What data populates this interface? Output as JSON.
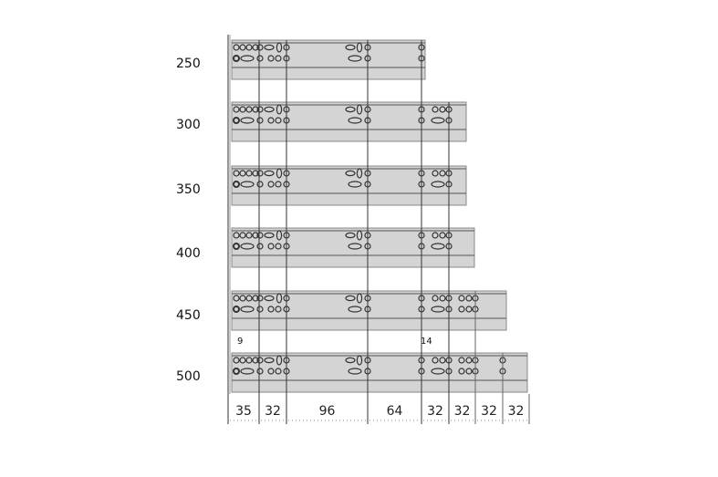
{
  "rails": [
    {
      "length_label": "250",
      "extra_groups": 0
    },
    {
      "length_label": "300",
      "extra_groups": 1
    },
    {
      "length_label": "350",
      "extra_groups": 1
    },
    {
      "length_label": "400",
      "extra_groups": 1
    },
    {
      "length_label": "450",
      "extra_groups": 2
    },
    {
      "length_label": "500",
      "extra_groups": 3
    }
  ],
  "annotations": {
    "left": "9",
    "right": "14"
  },
  "dimensions": [
    "35",
    "32",
    "96",
    "64",
    "32",
    "32",
    "32",
    "32"
  ],
  "colors": {
    "rail": "#d4d4d4",
    "line": "#333333"
  }
}
